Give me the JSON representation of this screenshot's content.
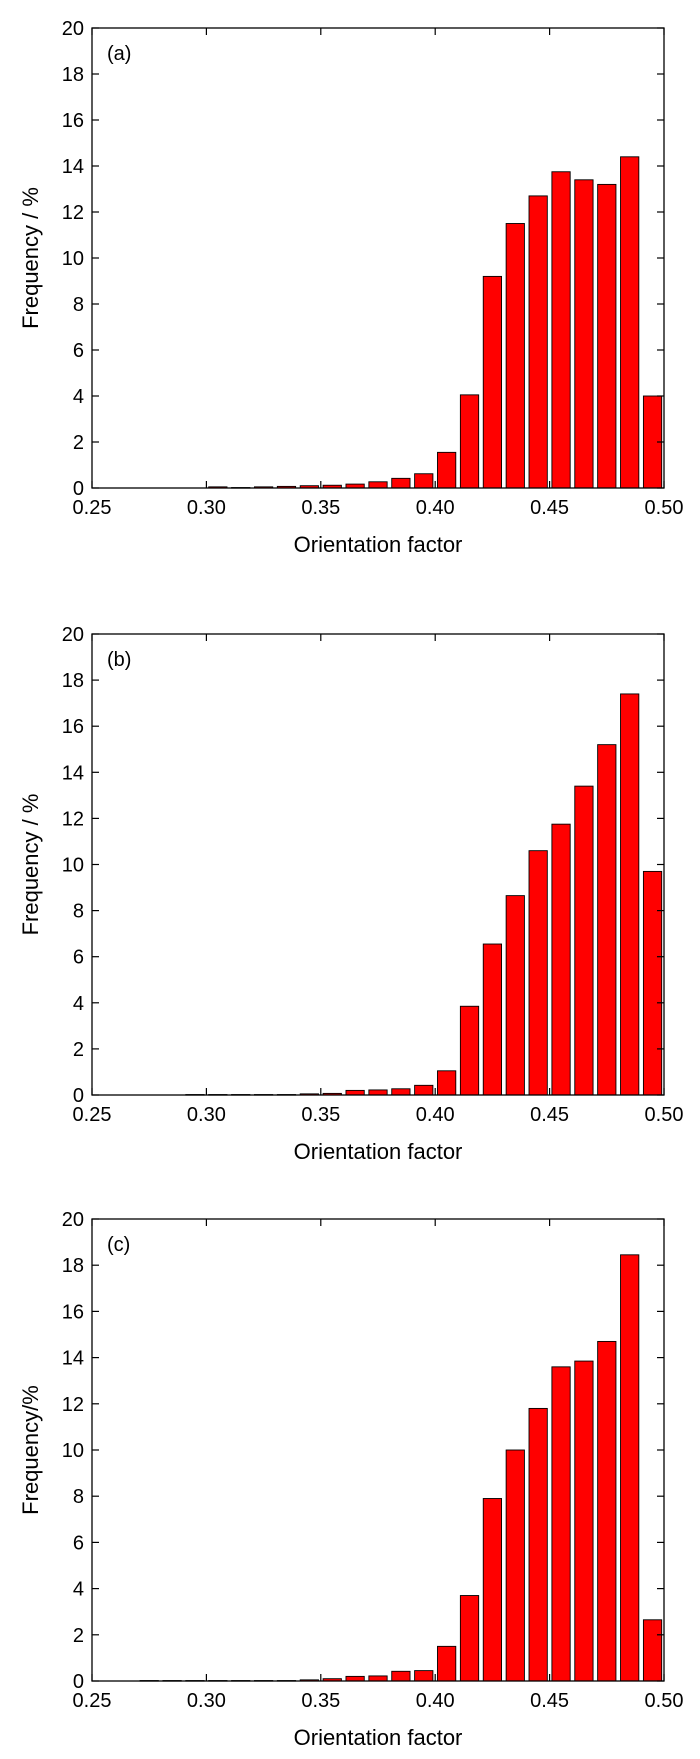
{
  "chart_data": [
    {
      "type": "bar",
      "panel_label": "(a)",
      "xlabel": "Orientation factor",
      "ylabel": "Frequency / %",
      "xlim": [
        0.25,
        0.5
      ],
      "ylim": [
        0,
        20
      ],
      "x_ticks": [
        "0.25",
        "0.30",
        "0.35",
        "0.40",
        "0.45",
        "0.50"
      ],
      "y_ticks": [
        "0",
        "2",
        "4",
        "6",
        "8",
        "10",
        "12",
        "14",
        "16",
        "18",
        "20"
      ],
      "bin_width": 0.01,
      "bar_color": "#ff0000",
      "bin_centers": [
        0.305,
        0.315,
        0.325,
        0.335,
        0.345,
        0.355,
        0.365,
        0.375,
        0.385,
        0.395,
        0.405,
        0.415,
        0.425,
        0.435,
        0.445,
        0.455,
        0.465,
        0.475,
        0.485,
        0.495
      ],
      "values": [
        0.05,
        0.02,
        0.05,
        0.07,
        0.1,
        0.12,
        0.17,
        0.27,
        0.42,
        0.62,
        1.55,
        4.05,
        9.2,
        11.5,
        12.7,
        13.75,
        13.4,
        13.2,
        14.4,
        4.0
      ]
    },
    {
      "type": "bar",
      "panel_label": "(b)",
      "xlabel": "Orientation factor",
      "ylabel": "Frequency / %",
      "xlim": [
        0.25,
        0.5
      ],
      "ylim": [
        0,
        20
      ],
      "x_ticks": [
        "0.25",
        "0.30",
        "0.35",
        "0.40",
        "0.45",
        "0.50"
      ],
      "y_ticks": [
        "0",
        "2",
        "4",
        "6",
        "8",
        "10",
        "12",
        "14",
        "16",
        "18",
        "20"
      ],
      "bin_width": 0.01,
      "bar_color": "#ff0000",
      "bin_centers": [
        0.295,
        0.305,
        0.315,
        0.325,
        0.335,
        0.345,
        0.355,
        0.365,
        0.375,
        0.385,
        0.395,
        0.405,
        0.415,
        0.425,
        0.435,
        0.445,
        0.455,
        0.465,
        0.475,
        0.485,
        0.495
      ],
      "values": [
        0.02,
        0.02,
        0.02,
        0.02,
        0.02,
        0.05,
        0.07,
        0.2,
        0.22,
        0.27,
        0.42,
        1.05,
        3.85,
        6.55,
        8.65,
        10.6,
        11.75,
        13.4,
        15.2,
        17.4,
        9.7
      ]
    },
    {
      "type": "bar",
      "panel_label": "(c)",
      "xlabel": "Orientation factor",
      "ylabel": "Frequency/%",
      "xlim": [
        0.25,
        0.5
      ],
      "ylim": [
        0,
        20
      ],
      "x_ticks": [
        "0.25",
        "0.30",
        "0.35",
        "0.40",
        "0.45",
        "0.50"
      ],
      "y_ticks": [
        "0",
        "2",
        "4",
        "6",
        "8",
        "10",
        "12",
        "14",
        "16",
        "18",
        "20"
      ],
      "bin_width": 0.01,
      "bar_color": "#ff0000",
      "bin_centers": [
        0.275,
        0.285,
        0.295,
        0.305,
        0.315,
        0.325,
        0.335,
        0.345,
        0.355,
        0.365,
        0.375,
        0.385,
        0.395,
        0.405,
        0.415,
        0.425,
        0.435,
        0.445,
        0.455,
        0.465,
        0.475,
        0.485,
        0.495
      ],
      "values": [
        0.02,
        0.02,
        0.02,
        0.02,
        0.02,
        0.02,
        0.02,
        0.05,
        0.1,
        0.2,
        0.22,
        0.42,
        0.45,
        1.5,
        3.7,
        7.9,
        10.0,
        11.8,
        13.6,
        13.85,
        14.7,
        18.45,
        2.65
      ]
    }
  ]
}
